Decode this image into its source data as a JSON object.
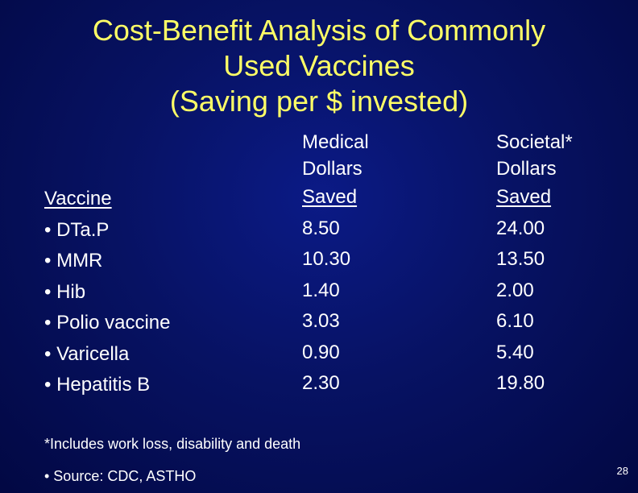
{
  "title": {
    "line1": "Cost-Benefit Analysis of Commonly",
    "line2": "Used Vaccines",
    "line3": "(Saving per $ invested)"
  },
  "columns": {
    "vaccine": {
      "header": "Vaccine"
    },
    "medical": {
      "header_line1": "Medical",
      "header_line2": "Dollars",
      "header_line3": "Saved"
    },
    "societal": {
      "header_line1": "Societal*",
      "header_line2": "Dollars",
      "header_line3": "Saved"
    }
  },
  "rows": [
    {
      "vaccine": "• DTa.P",
      "medical": "8.50",
      "societal": "24.00"
    },
    {
      "vaccine": "• MMR",
      "medical": "10.30",
      "societal": "13.50"
    },
    {
      "vaccine": "• Hib",
      "medical": "1.40",
      "societal": "2.00"
    },
    {
      "vaccine": "• Polio vaccine",
      "medical": "3.03",
      "societal": "6.10"
    },
    {
      "vaccine": "• Varicella",
      "medical": "0.90",
      "societal": "5.40"
    },
    {
      "vaccine": "• Hepatitis B",
      "medical": "2.30",
      "societal": "19.80"
    }
  ],
  "footnote": "*Includes work loss, disability and death",
  "source": "• Source: CDC, ASTHO",
  "slide_number": "28",
  "colors": {
    "background": "#071263",
    "title": "#ffff66",
    "text": "#ffffff"
  }
}
